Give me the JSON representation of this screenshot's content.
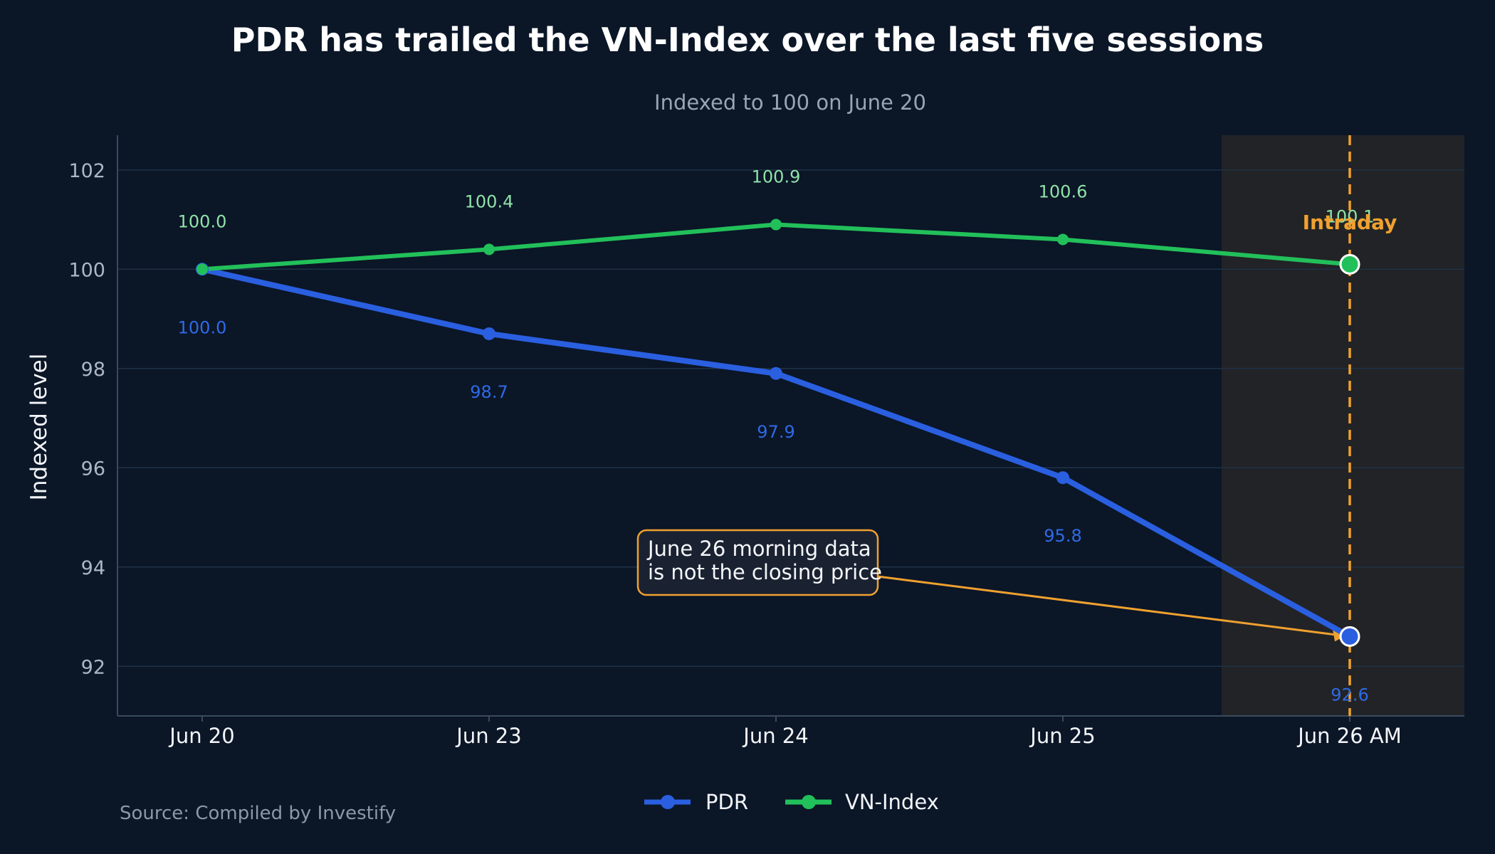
{
  "chart_data": {
    "type": "line",
    "title": "PDR has trailed the VN-Index over the last five sessions",
    "subtitle": "Indexed to 100 on June 20",
    "ylabel": "Indexed level",
    "xlabel": "",
    "categories": [
      "Jun 20",
      "Jun 23",
      "Jun 24",
      "Jun 25",
      "Jun 26 AM"
    ],
    "ylim": [
      91,
      102.7
    ],
    "yticks": [
      92,
      94,
      96,
      98,
      100,
      102
    ],
    "grid": true,
    "legend_position": "bottom-center",
    "series": [
      {
        "name": "PDR",
        "color": "#2a5fe0",
        "values": [
          100.0,
          98.7,
          97.9,
          95.8,
          92.6
        ],
        "labels": [
          "100.0",
          "98.7",
          "97.9",
          "95.8",
          "92.6"
        ]
      },
      {
        "name": "VN-Index",
        "color": "#22c05a",
        "values": [
          100.0,
          100.4,
          100.9,
          100.6,
          100.1
        ],
        "labels": [
          "100.0",
          "100.4",
          "100.9",
          "100.6",
          "100.1"
        ]
      }
    ],
    "highlight": {
      "category": "Jun 26 AM",
      "label": "Intraday",
      "color": "#f0a12f"
    },
    "annotation": {
      "lines": [
        "June 26 morning data",
        "is not the closing price"
      ],
      "target_category": "Jun 26 AM",
      "target_series": "PDR"
    },
    "source": "Source: Compiled by Investify"
  }
}
